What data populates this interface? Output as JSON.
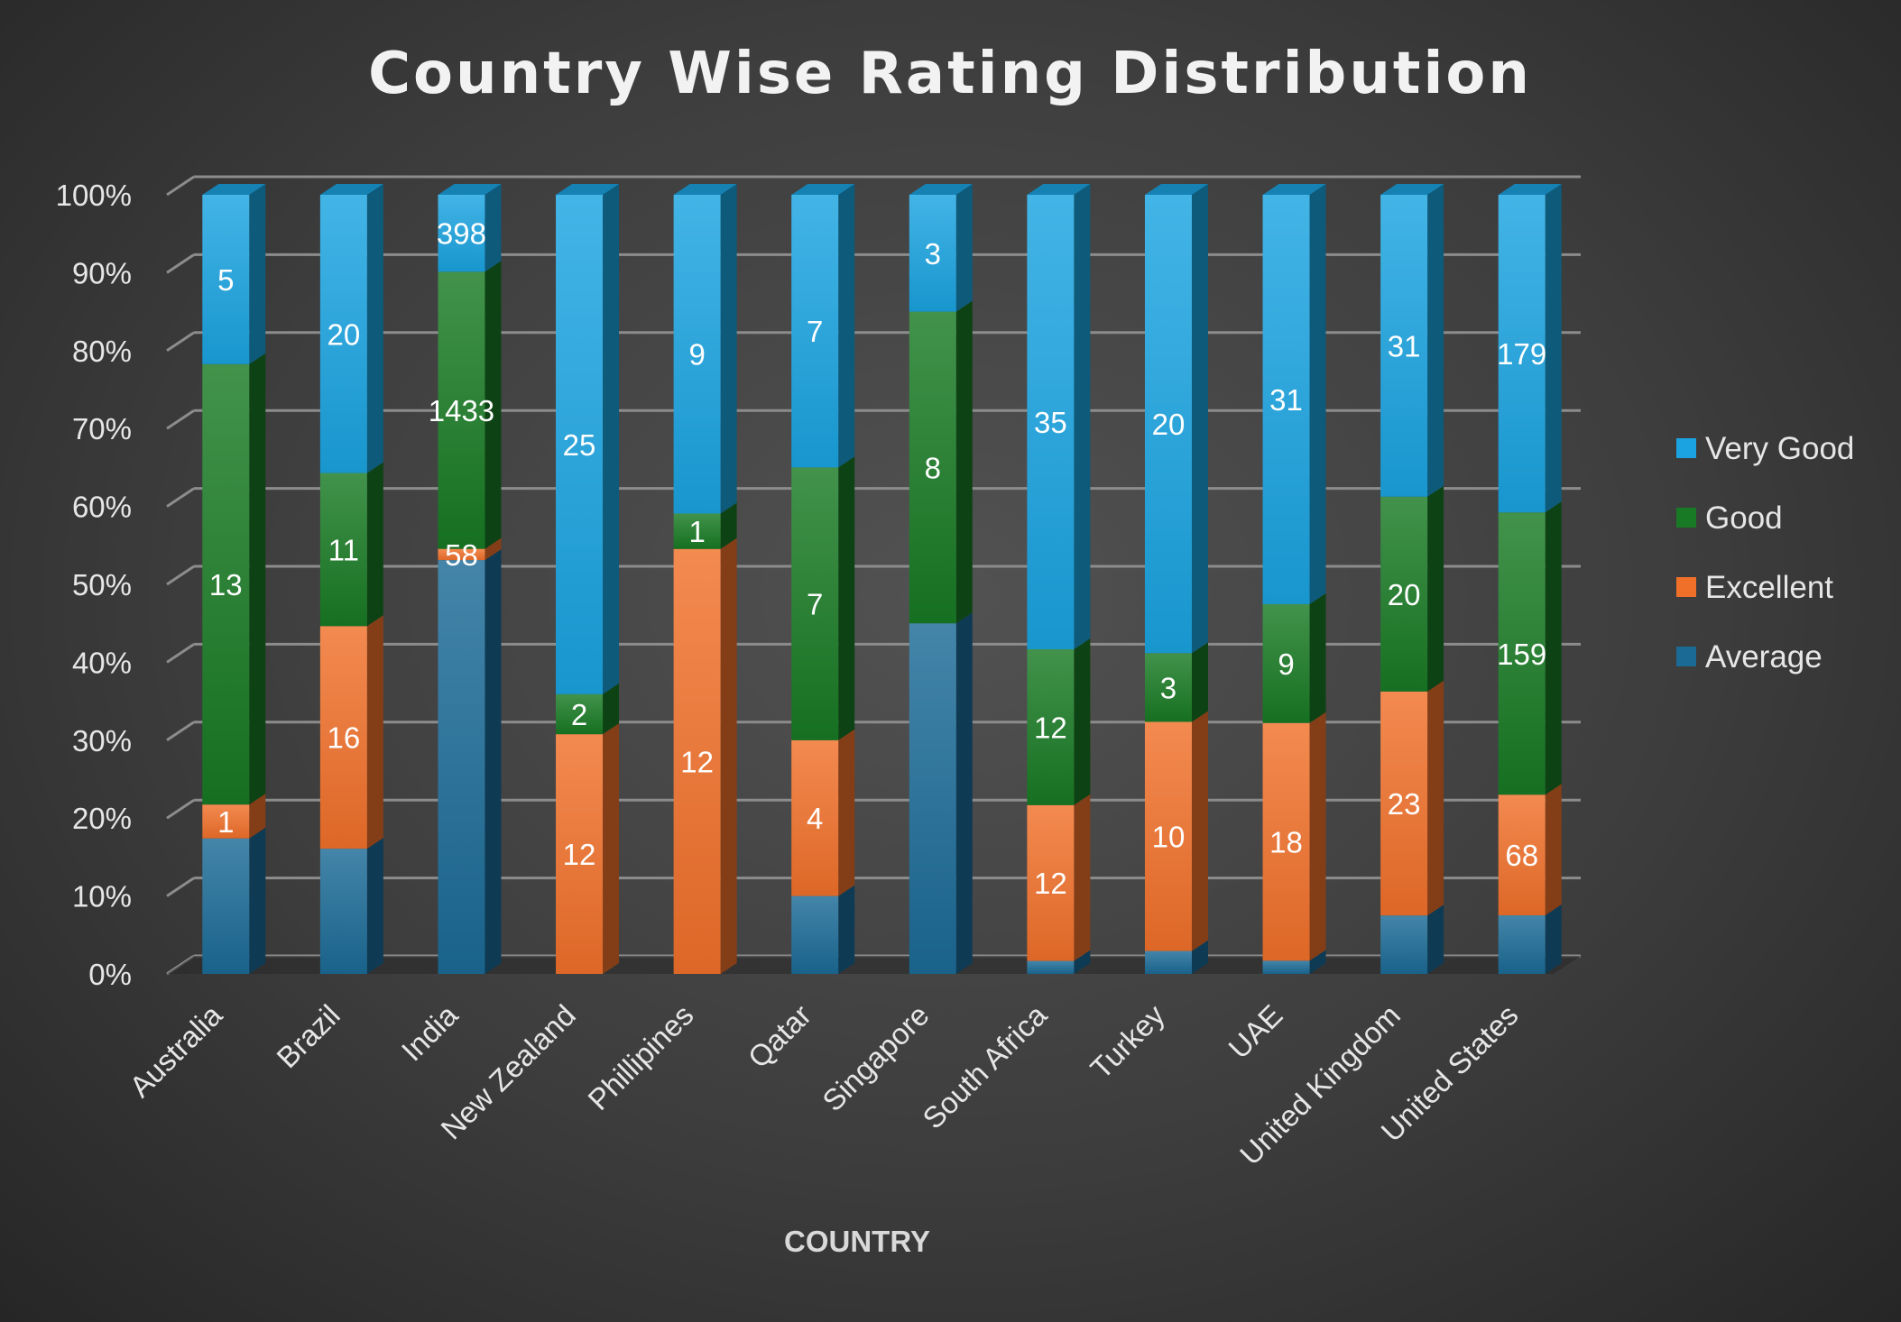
{
  "chart_data": {
    "type": "bar",
    "stacked": "percent",
    "title": "Country Wise Rating Distribution",
    "xlabel": "COUNTRY",
    "ylabel": "",
    "ylim": [
      0,
      100
    ],
    "yticks": [
      "0%",
      "10%",
      "20%",
      "30%",
      "40%",
      "50%",
      "60%",
      "70%",
      "80%",
      "90%",
      "100%"
    ],
    "categories": [
      "Australia",
      "Brazil",
      "India",
      "New Zealand",
      "Phillipines",
      "Qatar",
      "Singapore",
      "South Africa",
      "Turkey",
      "UAE",
      "United Kingdom",
      "United States"
    ],
    "series": [
      {
        "name": "Average",
        "color": "#1b6a96",
        "values": [
          4,
          9,
          2140,
          0,
          0,
          2,
          9,
          1,
          1,
          1,
          6,
          33
        ],
        "labels": [
          "",
          "",
          "",
          "",
          "",
          "",
          "",
          "",
          "",
          "",
          "",
          ""
        ]
      },
      {
        "name": "Excellent",
        "color": "#f0702a",
        "values": [
          1,
          16,
          58,
          12,
          12,
          4,
          0,
          12,
          10,
          18,
          23,
          68
        ],
        "labels": [
          "1",
          "16",
          "58",
          "12",
          "12",
          "4",
          "",
          "12",
          "10",
          "18",
          "23",
          "68"
        ]
      },
      {
        "name": "Good",
        "color": "#187a24",
        "values": [
          13,
          11,
          1433,
          2,
          1,
          7,
          8,
          12,
          3,
          9,
          20,
          159
        ],
        "labels": [
          "13",
          "11",
          "1433",
          "2",
          "1",
          "7",
          "8",
          "12",
          "3",
          "9",
          "20",
          "159"
        ]
      },
      {
        "name": "Very Good",
        "color": "#1aa3e0",
        "values": [
          5,
          20,
          398,
          25,
          9,
          7,
          3,
          35,
          20,
          31,
          31,
          179
        ],
        "labels": [
          "5",
          "20",
          "398",
          "25",
          "9",
          "7",
          "3",
          "35",
          "20",
          "31",
          "31",
          "179"
        ]
      }
    ],
    "legend_position": "right",
    "legend_order": [
      "Very Good",
      "Good",
      "Excellent",
      "Average"
    ],
    "grid": true,
    "background": "#404040"
  }
}
